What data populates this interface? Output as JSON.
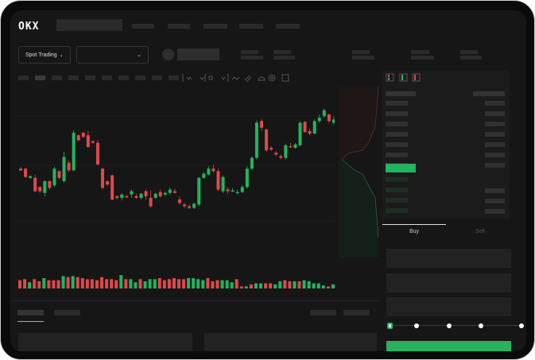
{
  "header": {
    "logo": "OKX"
  },
  "toolbar": {
    "market_dropdown": "Spot Trading",
    "chevron": "⌄"
  },
  "trade": {
    "buy_tab": "Buy",
    "sell_tab": "Sell",
    "slider_percent": 0
  },
  "colors": {
    "up": "#22b45f",
    "down": "#e0484c",
    "background": "#161616",
    "accent": "#22b45f"
  },
  "chart_data": {
    "type": "candlestick",
    "candles": [
      [
        55,
        57,
        52,
        53
      ],
      [
        55,
        56,
        44,
        45
      ],
      [
        44,
        47,
        43,
        46
      ],
      [
        44,
        48,
        27,
        28
      ],
      [
        33,
        34,
        26,
        28
      ],
      [
        26,
        41,
        22,
        40
      ],
      [
        40,
        41,
        30,
        32
      ],
      [
        35,
        57,
        33,
        55
      ],
      [
        52,
        53,
        42,
        44
      ],
      [
        40,
        75,
        38,
        69
      ],
      [
        62,
        65,
        51,
        53
      ],
      [
        53,
        101,
        52,
        98
      ],
      [
        95,
        96,
        88,
        89
      ],
      [
        98,
        99,
        92,
        93
      ],
      [
        95,
        100,
        80,
        81
      ],
      [
        88,
        89,
        85,
        86
      ],
      [
        86,
        89,
        59,
        60
      ],
      [
        55,
        56,
        30,
        32
      ],
      [
        40,
        41,
        34,
        36
      ],
      [
        47,
        48,
        17,
        18
      ],
      [
        22,
        23,
        18,
        20
      ],
      [
        20,
        25,
        17,
        24
      ],
      [
        22,
        24,
        20,
        21
      ],
      [
        24,
        30,
        20,
        28
      ],
      [
        22,
        25,
        19,
        20
      ],
      [
        20,
        26,
        18,
        25
      ],
      [
        28,
        30,
        18,
        22
      ],
      [
        20,
        29,
        8,
        10
      ],
      [
        20,
        26,
        19,
        25
      ],
      [
        27,
        30,
        20,
        22
      ],
      [
        24,
        28,
        22,
        26
      ],
      [
        26,
        32,
        24,
        30
      ],
      [
        28,
        31,
        25,
        26
      ],
      [
        18,
        22,
        12,
        14
      ],
      [
        12,
        14,
        8,
        10
      ],
      [
        10,
        12,
        7,
        8
      ],
      [
        8,
        14,
        7,
        13
      ],
      [
        12,
        45,
        10,
        44
      ],
      [
        44,
        51,
        43,
        49
      ],
      [
        48,
        58,
        47,
        55
      ],
      [
        55,
        60,
        50,
        52
      ],
      [
        52,
        55,
        28,
        30
      ],
      [
        28,
        47,
        26,
        45
      ],
      [
        30,
        33,
        25,
        28
      ],
      [
        28,
        32,
        27,
        29
      ],
      [
        26,
        30,
        24,
        27
      ],
      [
        27,
        35,
        26,
        33
      ],
      [
        33,
        58,
        31,
        55
      ],
      [
        55,
        70,
        53,
        68
      ],
      [
        68,
        113,
        66,
        110
      ],
      [
        112,
        114,
        100,
        104
      ],
      [
        102,
        103,
        75,
        77
      ],
      [
        80,
        82,
        76,
        78
      ],
      [
        74,
        76,
        70,
        72
      ],
      [
        70,
        72,
        66,
        68
      ],
      [
        68,
        85,
        66,
        83
      ],
      [
        82,
        86,
        80,
        81
      ],
      [
        80,
        86,
        79,
        84
      ],
      [
        83,
        112,
        82,
        110
      ],
      [
        111,
        112,
        98,
        99
      ],
      [
        100,
        103,
        95,
        97
      ],
      [
        97,
        114,
        96,
        112
      ],
      [
        112,
        120,
        110,
        116
      ],
      [
        118,
        127,
        116,
        125
      ],
      [
        120,
        121,
        110,
        112
      ],
      [
        110,
        118,
        108,
        114
      ]
    ],
    "volume": [
      [
        8,
        "d"
      ],
      [
        9,
        "d"
      ],
      [
        6,
        "u"
      ],
      [
        9,
        "d"
      ],
      [
        7,
        "d"
      ],
      [
        10,
        "u"
      ],
      [
        8,
        "d"
      ],
      [
        8,
        "d"
      ],
      [
        8,
        "d"
      ],
      [
        12,
        "u"
      ],
      [
        11,
        "d"
      ],
      [
        12,
        "u"
      ],
      [
        11,
        "d"
      ],
      [
        10,
        "d"
      ],
      [
        9,
        "d"
      ],
      [
        9,
        "d"
      ],
      [
        8,
        "d"
      ],
      [
        11,
        "d"
      ],
      [
        9,
        "d"
      ],
      [
        9,
        "d"
      ],
      [
        8,
        "d"
      ],
      [
        13,
        "u"
      ],
      [
        9,
        "d"
      ],
      [
        9,
        "u"
      ],
      [
        6,
        "u"
      ],
      [
        9,
        "d"
      ],
      [
        7,
        "u"
      ],
      [
        9,
        "u"
      ],
      [
        9,
        "u"
      ],
      [
        10,
        "d"
      ],
      [
        8,
        "d"
      ],
      [
        9,
        "d"
      ],
      [
        10,
        "d"
      ],
      [
        9,
        "d"
      ],
      [
        9,
        "d"
      ],
      [
        10,
        "u"
      ],
      [
        10,
        "u"
      ],
      [
        9,
        "u"
      ],
      [
        8,
        "u"
      ],
      [
        10,
        "d"
      ],
      [
        7,
        "d"
      ],
      [
        8,
        "d"
      ],
      [
        8,
        "u"
      ],
      [
        8,
        "u"
      ],
      [
        6,
        "u"
      ],
      [
        9,
        "d"
      ],
      [
        2,
        "d"
      ],
      [
        2,
        "u"
      ],
      [
        4,
        "d"
      ],
      [
        5,
        "u"
      ],
      [
        5,
        "u"
      ],
      [
        5,
        "d"
      ],
      [
        5,
        "d"
      ],
      [
        4,
        "u"
      ],
      [
        7,
        "u"
      ],
      [
        8,
        "d"
      ],
      [
        7,
        "d"
      ],
      [
        7,
        "u"
      ],
      [
        7,
        "d"
      ],
      [
        8,
        "u"
      ],
      [
        7,
        "u"
      ],
      [
        5,
        "u"
      ],
      [
        5,
        "u"
      ],
      [
        3,
        "u"
      ],
      [
        2,
        "d"
      ],
      [
        4,
        "u"
      ]
    ]
  }
}
